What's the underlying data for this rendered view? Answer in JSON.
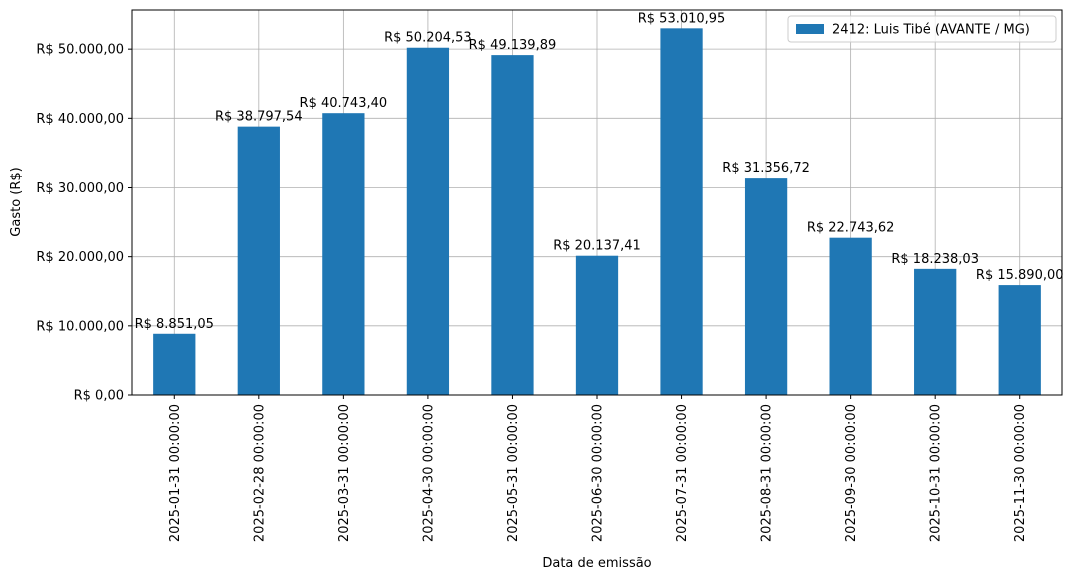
{
  "chart_data": {
    "type": "bar",
    "x_label": "Data de emissão",
    "y_label": "Gasto (R$)",
    "categories": [
      "2025-01-31 00:00:00",
      "2025-02-28 00:00:00",
      "2025-03-31 00:00:00",
      "2025-04-30 00:00:00",
      "2025-05-31 00:00:00",
      "2025-06-30 00:00:00",
      "2025-07-31 00:00:00",
      "2025-08-31 00:00:00",
      "2025-09-30 00:00:00",
      "2025-10-31 00:00:00",
      "2025-11-30 00:00:00"
    ],
    "series": [
      {
        "name": "2412: Luis Tibé (AVANTE / MG)",
        "color": "#1f77b4",
        "values": [
          8851.05,
          38797.54,
          40743.4,
          50204.53,
          49139.89,
          20137.41,
          53010.95,
          31356.72,
          22743.62,
          18238.03,
          15890.0
        ],
        "value_labels": [
          "R$ 8.851,05",
          "R$ 38.797,54",
          "R$ 40.743,40",
          "R$ 50.204,53",
          "R$ 49.139,89",
          "R$ 20.137,41",
          "R$ 53.010,95",
          "R$ 31.356,72",
          "R$ 22.743,62",
          "R$ 18.238,03",
          "R$ 15.890,00"
        ]
      }
    ],
    "ylim": [
      0,
      55661.5
    ],
    "yticks": [
      {
        "value": 0,
        "label": "R$ 0,00"
      },
      {
        "value": 10000,
        "label": "R$ 10.000,00"
      },
      {
        "value": 20000,
        "label": "R$ 20.000,00"
      },
      {
        "value": 30000,
        "label": "R$ 30.000,00"
      },
      {
        "value": 40000,
        "label": "R$ 40.000,00"
      },
      {
        "value": 50000,
        "label": "R$ 50.000,00"
      }
    ],
    "grid": true,
    "legend": "upper right"
  }
}
